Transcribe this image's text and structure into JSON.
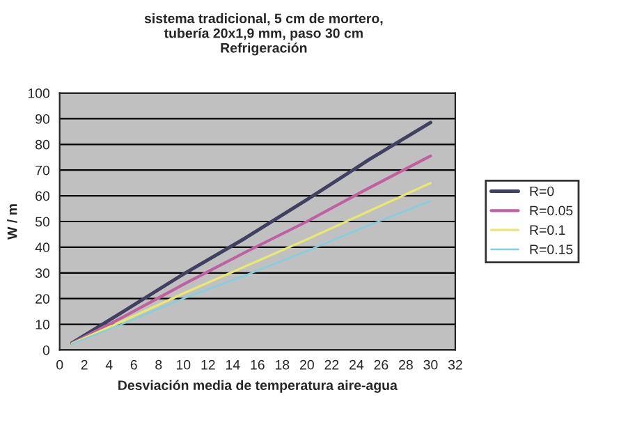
{
  "chart_data": {
    "type": "line",
    "title": "sistema tradicional, 5 cm de mortero,\ntubería 20x1,9 mm, paso 30 cm\nRefrigeración",
    "xlabel": "Desviación media de temperatura aire-agua",
    "ylabel": "W / m",
    "x": [
      1,
      5,
      10,
      15,
      20,
      25,
      30
    ],
    "series": [
      {
        "name": "R=0",
        "color": "#404060",
        "values": [
          2.7,
          14.5,
          29.5,
          43.5,
          58.5,
          74,
          88.5
        ]
      },
      {
        "name": "R=0.05",
        "color": "#c060a0",
        "values": [
          2.6,
          12.5,
          25.5,
          38,
          50,
          63,
          75.5
        ]
      },
      {
        "name": "R=0.1",
        "color": "#e8e870",
        "values": [
          2.5,
          11,
          22,
          32.5,
          43,
          54,
          65
        ]
      },
      {
        "name": "R=0.15",
        "color": "#80d0e0",
        "values": [
          2.4,
          10,
          20,
          29,
          38.5,
          48.5,
          58
        ]
      }
    ],
    "xlim": [
      0,
      32
    ],
    "xticks": [
      0,
      2,
      4,
      6,
      8,
      10,
      12,
      14,
      16,
      18,
      20,
      22,
      24,
      26,
      28,
      30,
      32
    ],
    "ylim": [
      0,
      100
    ],
    "yticks": [
      0,
      10,
      20,
      30,
      40,
      50,
      60,
      70,
      80,
      90,
      100
    ],
    "grid": "y",
    "legend": "right",
    "marker": "none",
    "line_style": "solid"
  }
}
